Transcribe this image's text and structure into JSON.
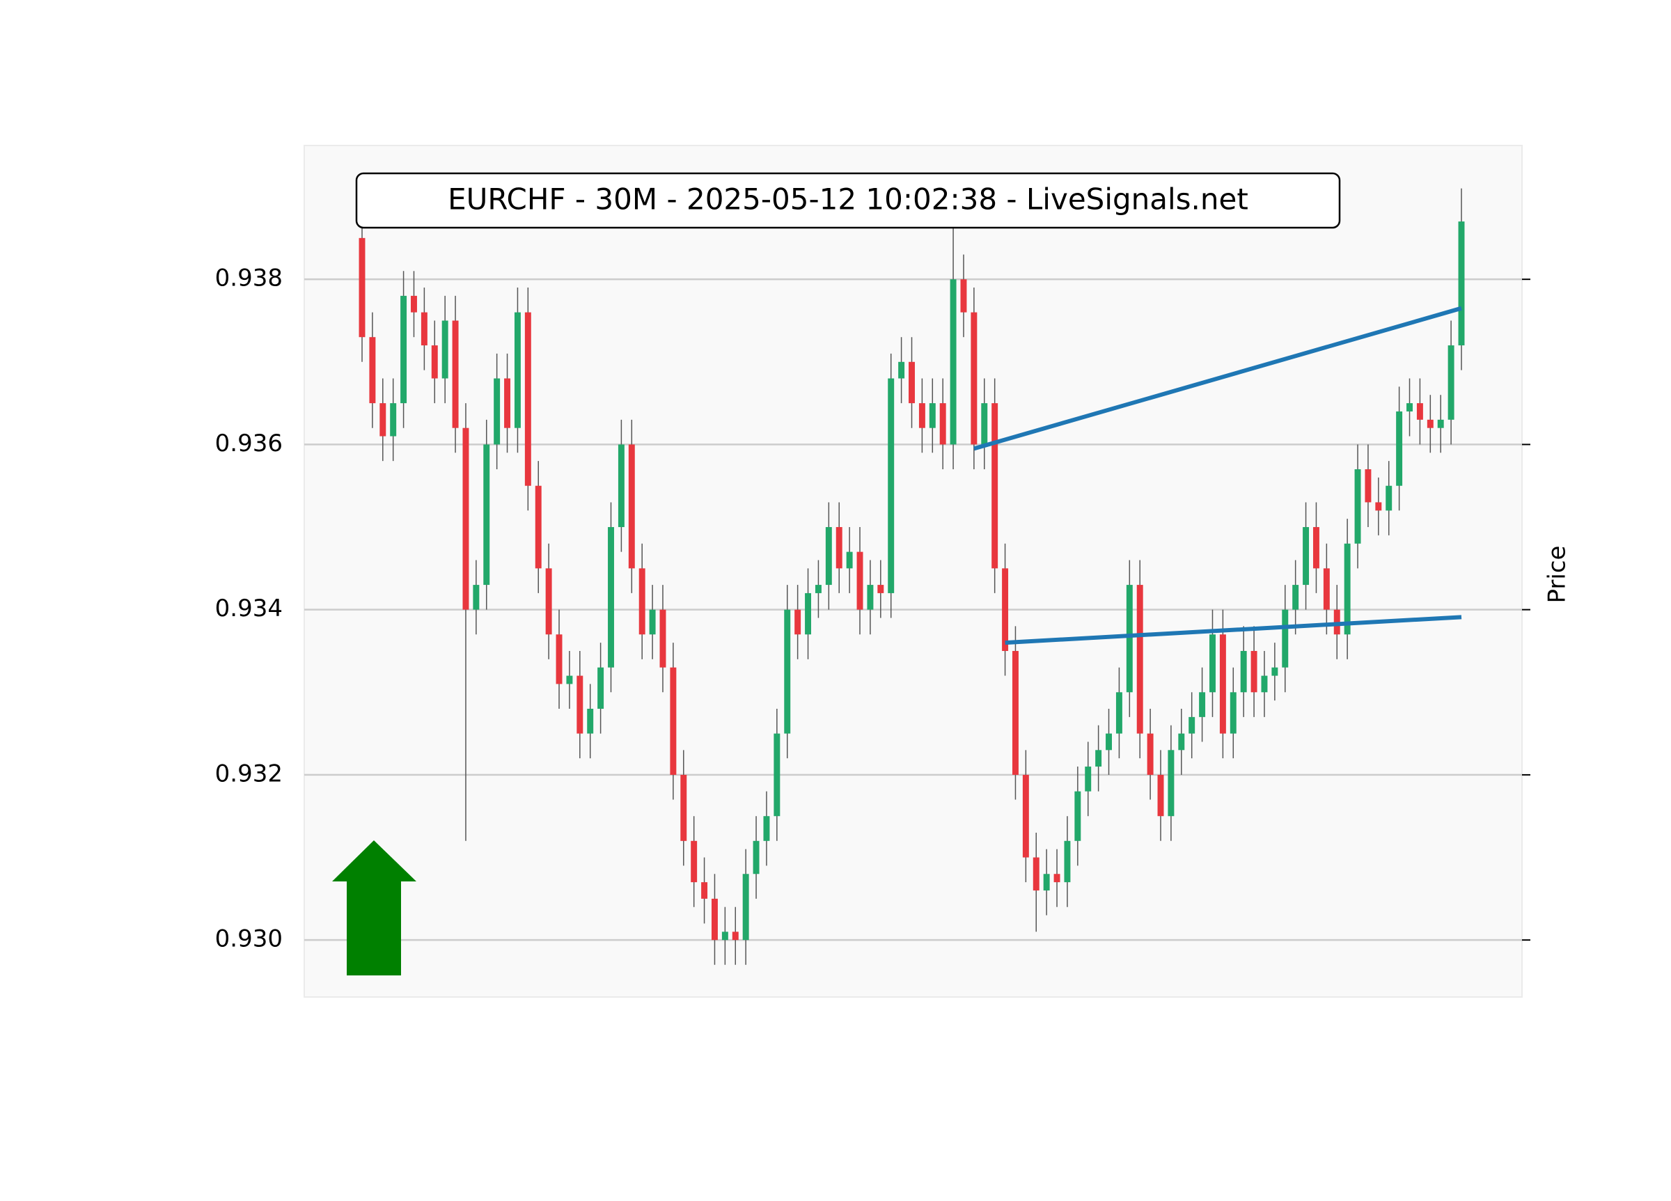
{
  "chart_data": {
    "type": "candlestick",
    "title": "EURCHF - 30M - 2025-05-12 10:02:38 - LiveSignals.net",
    "y_label": "Price",
    "ylim": [
      0.92931,
      0.93962
    ],
    "yticks": [
      {
        "value": 0.93,
        "label": "0.930"
      },
      0.932,
      0.934,
      0.936,
      0.938
    ],
    "grid": true,
    "up_color": "#22a86a",
    "down_color": "#e8373e",
    "wick_color": "#555555",
    "open": [
      0.9385,
      0.9373,
      0.9365,
      0.9361,
      0.9365,
      0.9378,
      0.9376,
      0.9372,
      0.9368,
      0.9375,
      0.9362,
      0.934,
      0.9343,
      0.936,
      0.9368,
      0.9362,
      0.9376,
      0.9355,
      0.9345,
      0.9337,
      0.9331,
      0.9332,
      0.9325,
      0.9328,
      0.9333,
      0.935,
      0.936,
      0.9345,
      0.9337,
      0.934,
      0.9333,
      0.932,
      0.9312,
      0.9307,
      0.9305,
      0.93,
      0.9301,
      0.93,
      0.9308,
      0.9312,
      0.9315,
      0.9325,
      0.934,
      0.9337,
      0.9342,
      0.9343,
      0.935,
      0.9345,
      0.9347,
      0.934,
      0.9343,
      0.9342,
      0.9368,
      0.937,
      0.9365,
      0.9362,
      0.9365,
      0.936,
      0.938,
      0.9376,
      0.936,
      0.9365,
      0.9345,
      0.9335,
      0.932,
      0.931,
      0.9306,
      0.9308,
      0.9307,
      0.9312,
      0.9318,
      0.9321,
      0.9323,
      0.9325,
      0.933,
      0.9343,
      0.9325,
      0.932,
      0.9315,
      0.9323,
      0.9325,
      0.9327,
      0.933,
      0.9337,
      0.9325,
      0.933,
      0.9335,
      0.933,
      0.9332,
      0.9333,
      0.934,
      0.9343,
      0.935,
      0.9345,
      0.934,
      0.9337,
      0.9348,
      0.9357,
      0.9353,
      0.9352,
      0.9355,
      0.9364,
      0.9365,
      0.9363,
      0.9362,
      0.9363,
      0.9372
    ],
    "high": [
      0.9388,
      0.9376,
      0.9368,
      0.9368,
      0.9381,
      0.9381,
      0.9379,
      0.9375,
      0.9378,
      0.9378,
      0.9365,
      0.9346,
      0.9363,
      0.9371,
      0.9371,
      0.9379,
      0.9379,
      0.9358,
      0.9348,
      0.934,
      0.9335,
      0.9335,
      0.9331,
      0.9336,
      0.9353,
      0.9363,
      0.9363,
      0.9348,
      0.9343,
      0.9343,
      0.9336,
      0.9323,
      0.9315,
      0.931,
      0.9308,
      0.9304,
      0.9304,
      0.9311,
      0.9315,
      0.9318,
      0.9328,
      0.9343,
      0.9343,
      0.9345,
      0.9346,
      0.9353,
      0.9353,
      0.935,
      0.935,
      0.9346,
      0.9346,
      0.9371,
      0.9373,
      0.9373,
      0.9368,
      0.9368,
      0.9368,
      0.9387,
      0.9383,
      0.9379,
      0.9368,
      0.9368,
      0.9348,
      0.9338,
      0.9323,
      0.9313,
      0.9311,
      0.9311,
      0.9315,
      0.9321,
      0.9324,
      0.9326,
      0.9328,
      0.9333,
      0.9346,
      0.9346,
      0.9328,
      0.9323,
      0.9326,
      0.9328,
      0.933,
      0.9333,
      0.934,
      0.934,
      0.9333,
      0.9338,
      0.9338,
      0.9335,
      0.9336,
      0.9343,
      0.9346,
      0.9353,
      0.9353,
      0.9348,
      0.9343,
      0.9351,
      0.936,
      0.936,
      0.9356,
      0.9358,
      0.9367,
      0.9368,
      0.9368,
      0.9366,
      0.9366,
      0.9375,
      0.9391
    ],
    "low": [
      0.937,
      0.9362,
      0.9358,
      0.9358,
      0.9362,
      0.9373,
      0.9369,
      0.9365,
      0.9365,
      0.9359,
      0.9312,
      0.9337,
      0.934,
      0.9357,
      0.9359,
      0.9359,
      0.9352,
      0.9342,
      0.9334,
      0.9328,
      0.9328,
      0.9322,
      0.9322,
      0.9325,
      0.933,
      0.9347,
      0.9342,
      0.9334,
      0.9334,
      0.933,
      0.9317,
      0.9309,
      0.9304,
      0.9302,
      0.9297,
      0.9297,
      0.9297,
      0.9297,
      0.9305,
      0.9309,
      0.9312,
      0.9322,
      0.9334,
      0.9334,
      0.9339,
      0.934,
      0.9342,
      0.9342,
      0.9337,
      0.9337,
      0.9339,
      0.9339,
      0.9365,
      0.9362,
      0.9359,
      0.9359,
      0.9357,
      0.9357,
      0.9373,
      0.9357,
      0.9357,
      0.9342,
      0.9332,
      0.9317,
      0.9307,
      0.9301,
      0.9303,
      0.9304,
      0.9304,
      0.9309,
      0.9315,
      0.9318,
      0.932,
      0.9322,
      0.9327,
      0.9322,
      0.9317,
      0.9312,
      0.9312,
      0.932,
      0.9322,
      0.9324,
      0.9327,
      0.9322,
      0.9322,
      0.9327,
      0.9327,
      0.9327,
      0.9329,
      0.933,
      0.9337,
      0.934,
      0.9342,
      0.9337,
      0.9334,
      0.9334,
      0.9345,
      0.935,
      0.9349,
      0.9349,
      0.9352,
      0.9361,
      0.936,
      0.9359,
      0.9359,
      0.936,
      0.9369
    ],
    "close": [
      0.9373,
      0.9365,
      0.9361,
      0.9365,
      0.9378,
      0.9376,
      0.9372,
      0.9368,
      0.9375,
      0.9362,
      0.934,
      0.9343,
      0.936,
      0.9368,
      0.9362,
      0.9376,
      0.9355,
      0.9345,
      0.9337,
      0.9331,
      0.9332,
      0.9325,
      0.9328,
      0.9333,
      0.935,
      0.936,
      0.9345,
      0.9337,
      0.934,
      0.9333,
      0.932,
      0.9312,
      0.9307,
      0.9305,
      0.93,
      0.9301,
      0.93,
      0.9308,
      0.9312,
      0.9315,
      0.9325,
      0.934,
      0.9337,
      0.9342,
      0.9343,
      0.935,
      0.9345,
      0.9347,
      0.934,
      0.9343,
      0.9342,
      0.9368,
      0.937,
      0.9365,
      0.9362,
      0.9365,
      0.936,
      0.938,
      0.9376,
      0.936,
      0.9365,
      0.9345,
      0.9335,
      0.932,
      0.931,
      0.9306,
      0.9308,
      0.9307,
      0.9312,
      0.9318,
      0.9321,
      0.9323,
      0.9325,
      0.933,
      0.9343,
      0.9325,
      0.932,
      0.9315,
      0.9323,
      0.9325,
      0.9327,
      0.933,
      0.9337,
      0.9325,
      0.933,
      0.9335,
      0.933,
      0.9332,
      0.9333,
      0.934,
      0.9343,
      0.935,
      0.9345,
      0.934,
      0.9337,
      0.9348,
      0.9357,
      0.9353,
      0.9352,
      0.9355,
      0.9364,
      0.9365,
      0.9363,
      0.9362,
      0.9363,
      0.9372,
      0.9387
    ],
    "lines": [
      {
        "color": "#1f77b4",
        "x": [
          59,
          106
        ],
        "y": [
          0.93595,
          0.93765
        ]
      },
      {
        "color": "#1f77b4",
        "x": [
          62,
          106
        ],
        "y": [
          0.9336,
          0.93391
        ]
      }
    ]
  }
}
